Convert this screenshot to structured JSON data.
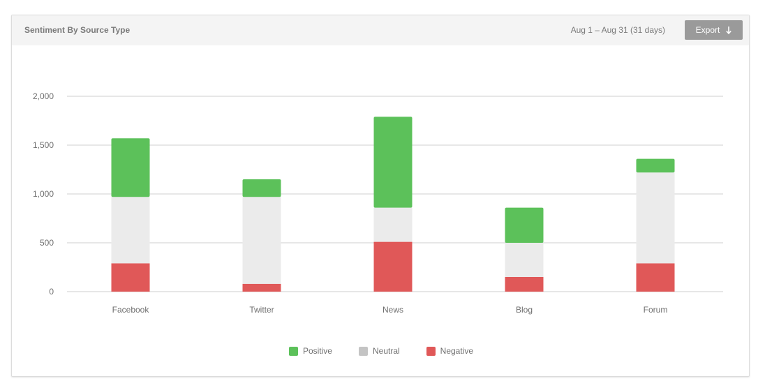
{
  "header": {
    "title": "Sentiment By Source Type",
    "date_range": "Aug 1 – Aug 31 (31 days)",
    "export_label": "Export",
    "export_icon": "arrow-down-icon"
  },
  "colors": {
    "positive": "#5cc15a",
    "neutral": "#ebebeb",
    "negative": "#e05858",
    "legend_neutral": "#c4c4c4",
    "grid": "#cfcfcf",
    "text": "#6f6f6f"
  },
  "chart_data": {
    "type": "bar",
    "stacked": true,
    "title": "Sentiment By Source Type",
    "categories": [
      "Facebook",
      "Twitter",
      "News",
      "Blog",
      "Forum"
    ],
    "series": [
      {
        "name": "Negative",
        "values": [
          290,
          80,
          510,
          150,
          290
        ]
      },
      {
        "name": "Neutral",
        "values": [
          680,
          890,
          350,
          350,
          930
        ]
      },
      {
        "name": "Positive",
        "values": [
          600,
          180,
          930,
          360,
          140
        ]
      }
    ],
    "ylim": [
      0,
      2000
    ],
    "yticks": [
      0,
      500,
      1000,
      1500,
      2000
    ],
    "ytick_labels": [
      "0",
      "500",
      "1,000",
      "1,500",
      "2,000"
    ],
    "grid": true,
    "legend_position": "bottom-center",
    "legend": [
      "Positive",
      "Neutral",
      "Negative"
    ]
  }
}
